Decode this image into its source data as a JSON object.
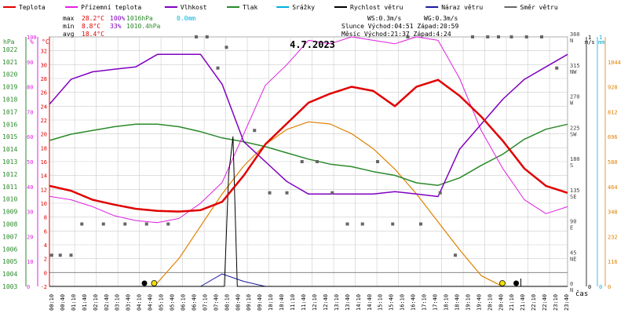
{
  "legend": [
    {
      "label": "Teplota",
      "color": "#e00000"
    },
    {
      "label": "Přízemní teplota",
      "color": "#e020e0"
    },
    {
      "label": "Vlhkost",
      "color": "#8000c0"
    },
    {
      "label": "Tlak",
      "color": "#2a8a2a"
    },
    {
      "label": "Srážky",
      "color": "#00b0e0"
    },
    {
      "label": "Rychlost větru",
      "color": "#000000"
    },
    {
      "label": "Náraz větru",
      "color": "#1a1aa0"
    },
    {
      "label": "Směr větru",
      "color": "#666666"
    }
  ],
  "stats": {
    "max": {
      "label": "max",
      "temp": "28.2°C",
      "hum": "100%",
      "press": "1016hPa",
      "rain": "0.0mm"
    },
    "min": {
      "label": "min",
      "temp": "8.8°C",
      "hum": "33%",
      "press": "1010.4hPa"
    },
    "avg": {
      "label": "avg",
      "temp": "18.4°C"
    }
  },
  "astro": {
    "ws": "WS:0.3m/s",
    "wg": "WG:0.3m/s",
    "sun": "Slunce Východ:04:51  Západ:20:59",
    "moon": "Měsíc  Východ:21:37  Západ:4:24"
  },
  "colors": {
    "temp": "#e00000",
    "ground": "#e020e0",
    "hum": "#8000c0",
    "press": "#2a8a2a",
    "rain": "#00b0e0",
    "wind": "#000000",
    "gust": "#1a1aa0",
    "dir": "#666666",
    "sun": "#e08000",
    "grid": "#cccccc"
  },
  "chart_data": {
    "type": "line",
    "title": "4.7.2023",
    "xlabel": "čas",
    "x_ticks": [
      "00:10",
      "00:40",
      "01:10",
      "01:40",
      "02:10",
      "02:40",
      "03:10",
      "03:40",
      "04:10",
      "04:40",
      "05:10",
      "05:40",
      "06:10",
      "06:40",
      "07:10",
      "07:40",
      "08:10",
      "08:40",
      "09:10",
      "09:40",
      "10:10",
      "10:40",
      "11:10",
      "11:40",
      "12:10",
      "12:40",
      "13:10",
      "13:40",
      "14:10",
      "14:40",
      "15:10",
      "15:40",
      "16:10",
      "16:40",
      "17:10",
      "17:40",
      "18:10",
      "18:40",
      "19:10",
      "19:40",
      "20:10",
      "20:40",
      "21:10",
      "21:40",
      "22:10",
      "22:40",
      "23:10",
      "23:40"
    ],
    "axes": {
      "pressure": {
        "unit": "hPa",
        "range": [
          1003,
          1023
        ],
        "ticks": [
          1003,
          1004,
          1005,
          1006,
          1007,
          1008,
          1009,
          1010,
          1011,
          1012,
          1013,
          1014,
          1015,
          1016,
          1017,
          1018,
          1019,
          1020,
          1021,
          1022
        ]
      },
      "humidity": {
        "unit": "%",
        "range": [
          0,
          100
        ],
        "ticks": [
          0,
          10,
          20,
          30,
          40,
          50,
          60,
          70,
          80,
          90,
          100
        ]
      },
      "temperature": {
        "unit": "°C",
        "range": [
          -2,
          34
        ],
        "ticks": [
          -2,
          0,
          2,
          4,
          6,
          8,
          10,
          12,
          14,
          16,
          18,
          20,
          22,
          24,
          26,
          28,
          30,
          32
        ]
      },
      "direction": {
        "unit": "°",
        "range": [
          0,
          360
        ],
        "ticks": [
          {
            "v": 0,
            "deg": "0",
            "dir": "N"
          },
          {
            "v": 45,
            "deg": "45",
            "dir": "NE"
          },
          {
            "v": 90,
            "deg": "90",
            "dir": "E"
          },
          {
            "v": 135,
            "deg": "135",
            "dir": "SE"
          },
          {
            "v": 180,
            "deg": "180",
            "dir": "S"
          },
          {
            "v": 225,
            "deg": "225",
            "dir": "SW"
          },
          {
            "v": 270,
            "deg": "270",
            "dir": "W"
          },
          {
            "v": 315,
            "deg": "315",
            "dir": "NW"
          },
          {
            "v": 360,
            "deg": "360",
            "dir": "N"
          }
        ]
      },
      "wind": {
        "unit": "m/s",
        "range": [
          0,
          1
        ],
        "ticks": [
          0,
          1
        ]
      },
      "rain": {
        "unit": "mm",
        "range": [
          0,
          1
        ],
        "ticks": [
          0,
          1
        ]
      },
      "solar": {
        "range": [
          0,
          1160
        ],
        "ticks": [
          0,
          116,
          232,
          348,
          464,
          580,
          696,
          812,
          928,
          1044
        ]
      }
    },
    "series": [
      {
        "name": "Teplota",
        "axis": "temperature",
        "x": [
          0,
          1,
          2,
          3,
          4,
          5,
          6,
          7,
          8,
          9,
          10,
          11,
          12,
          13,
          14,
          15,
          16,
          17,
          18,
          19,
          20,
          21,
          22,
          23,
          24
        ],
        "values": [
          12.5,
          11.8,
          10.5,
          9.8,
          9.2,
          8.9,
          8.8,
          9.0,
          10.2,
          14.0,
          18.5,
          21.5,
          24.5,
          25.8,
          26.8,
          26.2,
          24.0,
          26.8,
          27.8,
          25.5,
          22.5,
          19.0,
          15.0,
          12.5,
          11.5
        ]
      },
      {
        "name": "Přízemní teplota",
        "axis": "temperature",
        "x": [
          0,
          1,
          2,
          3,
          4,
          5,
          6,
          7,
          8,
          9,
          10,
          11,
          12,
          13,
          14,
          15,
          16,
          17,
          18,
          19,
          20,
          21,
          22,
          23,
          24
        ],
        "values": [
          11.0,
          10.5,
          9.5,
          8.2,
          7.5,
          7.2,
          7.8,
          10.0,
          13.0,
          20.0,
          27.0,
          30.0,
          33.5,
          33.0,
          34.0,
          33.5,
          33.0,
          34.0,
          33.5,
          28.0,
          20.5,
          15.0,
          10.5,
          8.5,
          9.5
        ]
      },
      {
        "name": "Vlhkost",
        "axis": "humidity",
        "x": [
          0,
          1,
          2,
          3,
          4,
          5,
          6,
          7,
          8,
          9,
          10,
          11,
          12,
          13,
          14,
          15,
          16,
          17,
          18,
          19,
          20,
          21,
          22,
          23,
          24
        ],
        "values": [
          73,
          83,
          86,
          87,
          88,
          93,
          93,
          93,
          81,
          58,
          50,
          42,
          37,
          37,
          37,
          37,
          38,
          37,
          36,
          55,
          65,
          75,
          83,
          88,
          93
        ]
      },
      {
        "name": "Tlak",
        "axis": "pressure",
        "x": [
          0,
          1,
          2,
          3,
          4,
          5,
          6,
          7,
          8,
          9,
          10,
          11,
          12,
          13,
          14,
          15,
          16,
          17,
          18,
          19,
          20,
          21,
          22,
          23,
          24
        ],
        "values": [
          1014.7,
          1015.2,
          1015.5,
          1015.8,
          1016.0,
          1016.0,
          1015.8,
          1015.4,
          1014.9,
          1014.6,
          1014.2,
          1013.7,
          1013.2,
          1012.8,
          1012.6,
          1012.2,
          1011.9,
          1011.3,
          1011.1,
          1011.7,
          1012.7,
          1013.6,
          1014.8,
          1015.6,
          1016.0
        ]
      },
      {
        "name": "Náraz větru",
        "axis": "wind",
        "x": [
          0,
          1,
          2,
          3,
          4,
          5,
          6,
          7,
          8,
          9,
          10,
          11,
          12,
          13,
          14,
          15,
          16,
          17,
          18,
          19,
          20,
          21,
          22,
          23,
          24
        ],
        "values": [
          0,
          0,
          0,
          0,
          0,
          0,
          0,
          0,
          0.05,
          0.02,
          0,
          0,
          0,
          0,
          0,
          0,
          0,
          0,
          0,
          0,
          0,
          0,
          0,
          0,
          0
        ]
      },
      {
        "name": "Rychlost větru",
        "axis": "wind",
        "x": [
          0,
          8.1,
          8.3,
          8.5,
          8.7,
          24
        ],
        "values": [
          0,
          0,
          0.45,
          0.6,
          0,
          0
        ]
      },
      {
        "name": "Slunce",
        "axis": "solar",
        "x": [
          4.85,
          6,
          7,
          8,
          9,
          10,
          11,
          12,
          13,
          14,
          15,
          16,
          17,
          18,
          19,
          20,
          20.98
        ],
        "values": [
          0,
          130,
          280,
          430,
          560,
          660,
          730,
          765,
          755,
          710,
          640,
          545,
          430,
          300,
          170,
          50,
          0
        ]
      }
    ],
    "wind_direction_points": [
      {
        "x": 0.1,
        "v": 45
      },
      {
        "x": 0.5,
        "v": 45
      },
      {
        "x": 1.0,
        "v": 45
      },
      {
        "x": 1.5,
        "v": 90
      },
      {
        "x": 2.5,
        "v": 90
      },
      {
        "x": 3.5,
        "v": 90
      },
      {
        "x": 4.5,
        "v": 90
      },
      {
        "x": 5.5,
        "v": 90
      },
      {
        "x": 6.8,
        "v": 360
      },
      {
        "x": 7.3,
        "v": 360
      },
      {
        "x": 7.8,
        "v": 315
      },
      {
        "x": 8.2,
        "v": 345
      },
      {
        "x": 9.5,
        "v": 225
      },
      {
        "x": 10.2,
        "v": 135
      },
      {
        "x": 11.0,
        "v": 135
      },
      {
        "x": 11.7,
        "v": 180
      },
      {
        "x": 12.4,
        "v": 180
      },
      {
        "x": 13.1,
        "v": 135
      },
      {
        "x": 13.8,
        "v": 90
      },
      {
        "x": 14.5,
        "v": 90
      },
      {
        "x": 15.2,
        "v": 180
      },
      {
        "x": 15.9,
        "v": 90
      },
      {
        "x": 16.6,
        "v": 360
      },
      {
        "x": 17.2,
        "v": 90
      },
      {
        "x": 18.1,
        "v": 135
      },
      {
        "x": 18.8,
        "v": 45
      },
      {
        "x": 19.6,
        "v": 360
      },
      {
        "x": 20.3,
        "v": 360
      },
      {
        "x": 20.8,
        "v": 360
      },
      {
        "x": 21.4,
        "v": 360
      },
      {
        "x": 22.1,
        "v": 360
      },
      {
        "x": 22.8,
        "v": 360
      },
      {
        "x": 23.5,
        "v": 315
      }
    ],
    "markers": {
      "moon_set": {
        "x": 4.4,
        "label": "Měsíc západ"
      },
      "sun_rise": {
        "x": 4.85,
        "label": "Slunce východ"
      },
      "sun_set": {
        "x": 20.98,
        "label": "Slunce západ"
      },
      "moon_rise": {
        "x": 21.62,
        "label": "Měsíc východ"
      }
    },
    "grid": true,
    "legend_position": "top"
  }
}
